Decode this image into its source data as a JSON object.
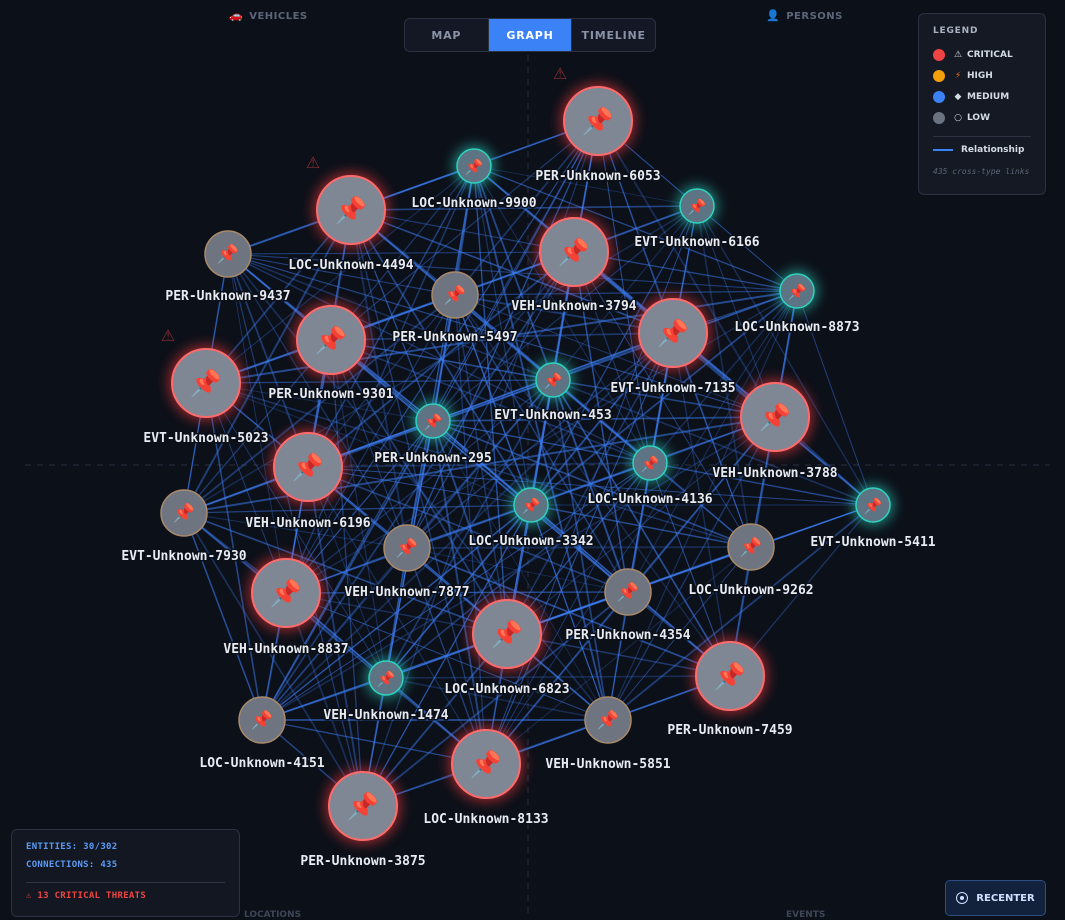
{
  "quadrants": {
    "vehicles": {
      "label": "VEHICLES",
      "icon": "car-icon"
    },
    "persons": {
      "label": "PERSONS",
      "icon": "person-icon"
    },
    "locations": {
      "label": "LOCATIONS"
    },
    "events": {
      "label": "EVENTS"
    }
  },
  "tabs": [
    {
      "label": "MAP",
      "active": false
    },
    {
      "label": "GRAPH",
      "active": true
    },
    {
      "label": "TIMELINE",
      "active": false
    }
  ],
  "legend": {
    "title": "LEGEND",
    "items": [
      {
        "label": "CRITICAL",
        "color": "#ef4444",
        "icon": "⚠"
      },
      {
        "label": "HIGH",
        "color": "#f59e0b",
        "icon": "⚡"
      },
      {
        "label": "MEDIUM",
        "color": "#3b82f6",
        "icon": "◆"
      },
      {
        "label": "LOW",
        "color": "#6b7280",
        "icon": "○"
      }
    ],
    "relationship_label": "Relationship",
    "links_note": "435 cross-type links"
  },
  "stats": {
    "entities": "ENTITIES: 30/302",
    "connections": "CONNECTIONS: 435",
    "critical": "⚠ 13 CRITICAL THREATS"
  },
  "recenter_label": "RECENTER",
  "nodes": [
    {
      "label": "PER-Unknown-6053",
      "level": "critical",
      "warn": true
    },
    {
      "label": "LOC-Unknown-9900",
      "level": "medium"
    },
    {
      "label": "EVT-Unknown-6166",
      "level": "medium"
    },
    {
      "label": "LOC-Unknown-4494",
      "level": "critical",
      "warn": true
    },
    {
      "label": "PER-Unknown-9437",
      "level": "low"
    },
    {
      "label": "VEH-Unknown-3794",
      "level": "critical"
    },
    {
      "label": "PER-Unknown-5497",
      "level": "low"
    },
    {
      "label": "LOC-Unknown-8873",
      "level": "medium"
    },
    {
      "label": "PER-Unknown-9301",
      "level": "critical"
    },
    {
      "label": "EVT-Unknown-7135",
      "level": "critical"
    },
    {
      "label": "EVT-Unknown-5023",
      "level": "critical",
      "warn": true
    },
    {
      "label": "EVT-Unknown-453",
      "level": "medium"
    },
    {
      "label": "VEH-Unknown-3788",
      "level": "critical"
    },
    {
      "label": "PER-Unknown-295",
      "level": "medium"
    },
    {
      "label": "VEH-Unknown-6196",
      "level": "critical"
    },
    {
      "label": "LOC-Unknown-4136",
      "level": "medium"
    },
    {
      "label": "EVT-Unknown-7930",
      "level": "low"
    },
    {
      "label": "LOC-Unknown-3342",
      "level": "medium"
    },
    {
      "label": "EVT-Unknown-5411",
      "level": "medium"
    },
    {
      "label": "VEH-Unknown-7877",
      "level": "low"
    },
    {
      "label": "LOC-Unknown-9262",
      "level": "low"
    },
    {
      "label": "VEH-Unknown-8837",
      "level": "critical"
    },
    {
      "label": "PER-Unknown-4354",
      "level": "low"
    },
    {
      "label": "LOC-Unknown-6823",
      "level": "critical"
    },
    {
      "label": "VEH-Unknown-1474",
      "level": "medium"
    },
    {
      "label": "PER-Unknown-7459",
      "level": "critical"
    },
    {
      "label": "LOC-Unknown-4151",
      "level": "low"
    },
    {
      "label": "VEH-Unknown-5851",
      "level": "low"
    },
    {
      "label": "LOC-Unknown-8133",
      "level": "critical"
    },
    {
      "label": "PER-Unknown-3875",
      "level": "critical"
    }
  ]
}
